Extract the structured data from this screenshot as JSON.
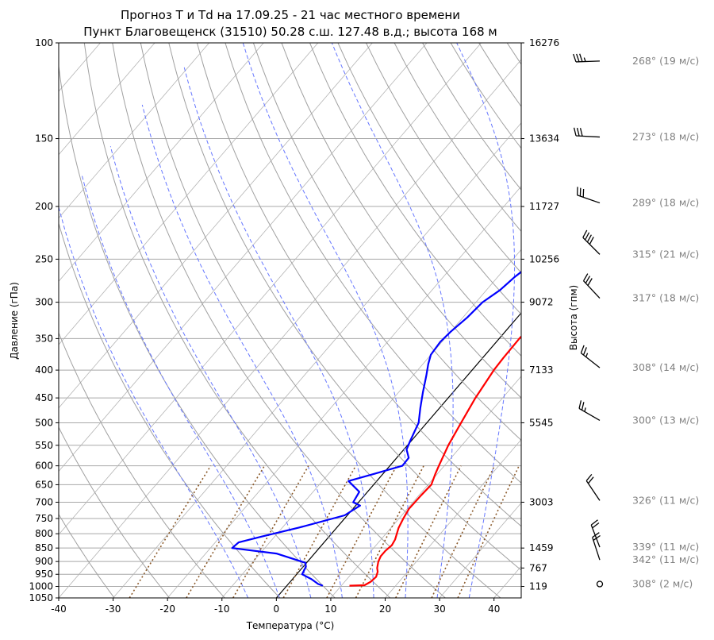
{
  "chart_data": {
    "type": "line",
    "title": "Прогноз T и Td на 17.09.25 - 21 час местного времени",
    "subtitle": "Пункт Благовещенск (31510) 50.28 с.ш. 127.48 в.д.; высота 168 м",
    "xlabel": "Температура (°C)",
    "ylabel": "Давление (гПа)",
    "ylabel_right": "Высота (гпм)",
    "xlim": [
      -40,
      45
    ],
    "ylim": [
      1050,
      100
    ],
    "y_scale": "log",
    "x_ticks": [
      "-40",
      "-30",
      "-20",
      "-10",
      "0",
      "10",
      "20",
      "30",
      "40"
    ],
    "y_ticks": [
      "100",
      "150",
      "200",
      "250",
      "300",
      "350",
      "400",
      "450",
      "500",
      "550",
      "600",
      "650",
      "700",
      "750",
      "800",
      "850",
      "900",
      "950",
      "1000",
      "1050"
    ],
    "height_ticks": [
      {
        "p": 100,
        "label": "16276"
      },
      {
        "p": 150,
        "label": "13634"
      },
      {
        "p": 200,
        "label": "11727"
      },
      {
        "p": 250,
        "label": "10256"
      },
      {
        "p": 300,
        "label": "9072"
      },
      {
        "p": 400,
        "label": "7133"
      },
      {
        "p": 500,
        "label": "5545"
      },
      {
        "p": 700,
        "label": "3003"
      },
      {
        "p": 850,
        "label": "1459"
      },
      {
        "p": 925,
        "label": "767"
      },
      {
        "p": 1000,
        "label": "119"
      }
    ],
    "grid": true,
    "colors": {
      "temperature": "#ff0000",
      "dewpoint": "#0000ff",
      "isotherm_zero": "#000000",
      "dry_adiabat": "#a0a0a0",
      "moist_adiabat": "#6677ff",
      "mixing_ratio": "#8b5a2b",
      "wind_label": "#808080"
    },
    "series": [
      {
        "key": "temperature",
        "points": [
          [
            11.5,
            997
          ],
          [
            14.2,
            995
          ],
          [
            14.8,
            980
          ],
          [
            15.0,
            960
          ],
          [
            14.5,
            940
          ],
          [
            13.8,
            925
          ],
          [
            13.0,
            900
          ],
          [
            12.6,
            880
          ],
          [
            12.6,
            860
          ],
          [
            12.9,
            840
          ],
          [
            12.6,
            820
          ],
          [
            12.0,
            800
          ],
          [
            11.4,
            780
          ],
          [
            10.8,
            750
          ],
          [
            10.3,
            720
          ],
          [
            10.4,
            680
          ],
          [
            10.6,
            650
          ],
          [
            9.6,
            620
          ],
          [
            9.0,
            600
          ],
          [
            7.5,
            550
          ],
          [
            6.3,
            500
          ],
          [
            5.0,
            450
          ],
          [
            4.0,
            400
          ],
          [
            3.8,
            380
          ],
          [
            3.7,
            350
          ],
          [
            4.0,
            320
          ],
          [
            4.5,
            300
          ],
          [
            5.6,
            280
          ],
          [
            8.0,
            260
          ],
          [
            13.0,
            240
          ],
          [
            18.0,
            225
          ],
          [
            22.0,
            210
          ],
          [
            26.0,
            190
          ],
          [
            30.0,
            170
          ],
          [
            33.0,
            155
          ],
          [
            34.8,
            145
          ],
          [
            36.0,
            135
          ],
          [
            38.0,
            125
          ],
          [
            41.0,
            115
          ],
          [
            44.0,
            108
          ],
          [
            46.0,
            103
          ]
        ]
      },
      {
        "key": "dewpoint",
        "points": [
          [
            6.6,
            997
          ],
          [
            5.5,
            990
          ],
          [
            3.5,
            970
          ],
          [
            1.0,
            950
          ],
          [
            0.5,
            920
          ],
          [
            -0.2,
            905
          ],
          [
            -7.0,
            870
          ],
          [
            -16.0,
            850
          ],
          [
            -15.7,
            830
          ],
          [
            -12.5,
            810
          ],
          [
            -7.0,
            780
          ],
          [
            -0.5,
            740
          ],
          [
            0.8,
            710
          ],
          [
            -1.0,
            700
          ],
          [
            -1.5,
            670
          ],
          [
            -5.2,
            640
          ],
          [
            -1.5,
            620
          ],
          [
            2.3,
            600
          ],
          [
            2.2,
            580
          ],
          [
            0.5,
            560
          ],
          [
            -0.2,
            540
          ],
          [
            -1.5,
            500
          ],
          [
            -3.5,
            470
          ],
          [
            -5.5,
            440
          ],
          [
            -7.5,
            410
          ],
          [
            -9.0,
            390
          ],
          [
            -10.0,
            375
          ],
          [
            -10.3,
            355
          ],
          [
            -10.0,
            340
          ],
          [
            -9.2,
            320
          ],
          [
            -8.8,
            300
          ],
          [
            -7.5,
            285
          ],
          [
            -6.9,
            270
          ],
          [
            -5.5,
            250
          ],
          [
            -3.5,
            235
          ],
          [
            0.5,
            220
          ],
          [
            6.0,
            200
          ],
          [
            10.0,
            185
          ],
          [
            14.0,
            170
          ],
          [
            17.0,
            155
          ],
          [
            18.0,
            150
          ],
          [
            19.0,
            140
          ],
          [
            20.0,
            130
          ],
          [
            22.0,
            120
          ],
          [
            24.0,
            113
          ],
          [
            26.0,
            107
          ],
          [
            26.5,
            103
          ]
        ]
      }
    ],
    "wind": [
      {
        "p": 108,
        "label": "268° (19 м/с)"
      },
      {
        "p": 149,
        "label": "273° (18 м/с)"
      },
      {
        "p": 197,
        "label": "289° (18 м/с)"
      },
      {
        "p": 245,
        "label": "315° (21 м/с)"
      },
      {
        "p": 295,
        "label": "317° (18 м/с)"
      },
      {
        "p": 396,
        "label": "308° (14 м/с)"
      },
      {
        "p": 495,
        "label": "300° (13 м/с)"
      },
      {
        "p": 695,
        "label": "326° (11 м/с)"
      },
      {
        "p": 847,
        "label": "339° (11 м/с)"
      },
      {
        "p": 894,
        "label": "342° (11 м/с)"
      },
      {
        "p": 990,
        "label": "308° (2 м/с)"
      }
    ]
  }
}
